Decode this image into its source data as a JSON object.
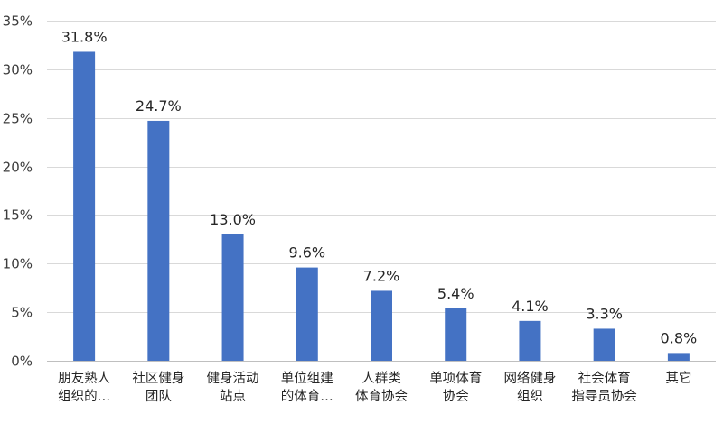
{
  "chart_data": {
    "type": "bar",
    "title": "",
    "xlabel": "",
    "ylabel": "",
    "categories": [
      [
        "朋友熟人",
        "组织的…"
      ],
      [
        "社区健身",
        "团队"
      ],
      [
        "健身活动",
        "站点"
      ],
      [
        "单位组建",
        "的体育…"
      ],
      [
        "人群类",
        "体育协会"
      ],
      [
        "单项体育",
        "协会"
      ],
      [
        "网络健身",
        "组织"
      ],
      [
        "社会体育",
        "指导员协会"
      ],
      [
        "其它"
      ]
    ],
    "values": [
      31.8,
      24.7,
      13.0,
      9.6,
      7.2,
      5.4,
      4.1,
      3.3,
      0.8
    ],
    "data_labels": [
      "31.8%",
      "24.7%",
      "13.0%",
      "9.6%",
      "7.2%",
      "5.4%",
      "4.1%",
      "3.3%",
      "0.8%"
    ],
    "y_ticks": [
      0,
      5,
      10,
      15,
      20,
      25,
      30,
      35
    ],
    "y_tick_labels": [
      "0%",
      "5%",
      "10%",
      "15%",
      "20%",
      "25%",
      "30%",
      "35%"
    ],
    "ylim": [
      0,
      35
    ],
    "grid": true,
    "legend": "none",
    "bar_color": "#4472c4"
  }
}
